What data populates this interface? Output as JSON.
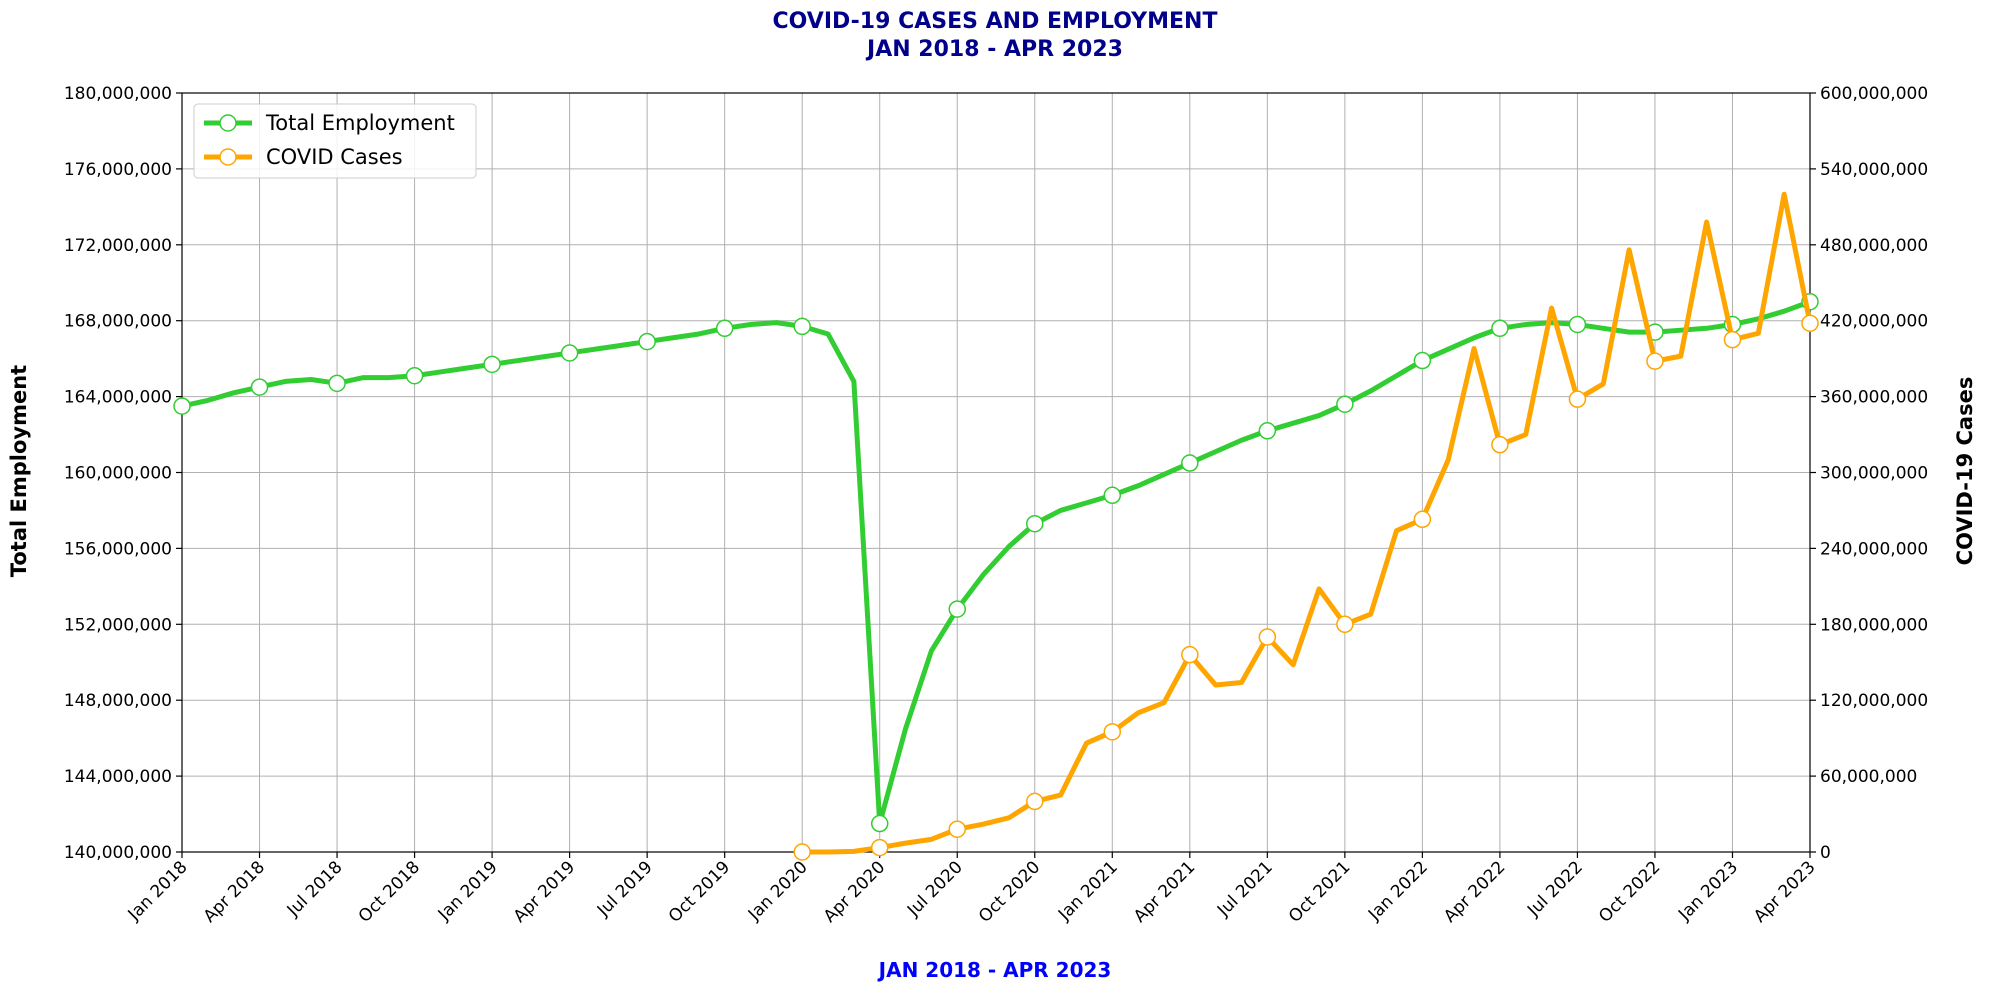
{
  "chart_data": {
    "type": "line",
    "title": [
      "COVID-19 CASES AND EMPLOYMENT",
      "JAN 2018 - APR 2023"
    ],
    "xlabel": "JAN 2018 - APR 2023",
    "ylabel_left": "Total Employment",
    "ylabel_right": "COVID-19 Cases",
    "ylim_left": [
      140000000,
      180000000
    ],
    "ylim_right": [
      0,
      600000000
    ],
    "yticks_left": [
      140000000,
      144000000,
      148000000,
      152000000,
      156000000,
      160000000,
      164000000,
      168000000,
      172000000,
      176000000,
      180000000
    ],
    "yticks_right": [
      0,
      60000000,
      120000000,
      180000000,
      240000000,
      300000000,
      360000000,
      420000000,
      480000000,
      540000000,
      600000000
    ],
    "ytick_labels_left": [
      "140,000,000",
      "144,000,000",
      "148,000,000",
      "152,000,000",
      "156,000,000",
      "160,000,000",
      "164,000,000",
      "168,000,000",
      "172,000,000",
      "176,000,000",
      "180,000,000"
    ],
    "ytick_labels_right": [
      "0",
      "60,000,000",
      "120,000,000",
      "180,000,000",
      "240,000,000",
      "300,000,000",
      "360,000,000",
      "420,000,000",
      "480,000,000",
      "540,000,000",
      "600,000,000"
    ],
    "xticks": [
      "Jan 2018",
      "Apr 2018",
      "Jul 2018",
      "Oct 2018",
      "Jan 2019",
      "Apr 2019",
      "Jul 2019",
      "Oct 2019",
      "Jan 2020",
      "Apr 2020",
      "Jul 2020",
      "Oct 2020",
      "Jan 2021",
      "Apr 2021",
      "Jul 2021",
      "Oct 2021",
      "Jan 2022",
      "Apr 2022",
      "Jul 2022",
      "Oct 2022",
      "Jan 2023",
      "Apr 2023"
    ],
    "grid": true,
    "legend_position": "top-left",
    "series": [
      {
        "name": "Total Employment",
        "color": "#32CD32",
        "axis": "left",
        "x": [
          "Jan 2018",
          "Feb 2018",
          "Mar 2018",
          "Apr 2018",
          "May 2018",
          "Jun 2018",
          "Jul 2018",
          "Aug 2018",
          "Sep 2018",
          "Oct 2018",
          "Nov 2018",
          "Dec 2018",
          "Jan 2019",
          "Feb 2019",
          "Mar 2019",
          "Apr 2019",
          "May 2019",
          "Jun 2019",
          "Jul 2019",
          "Aug 2019",
          "Sep 2019",
          "Oct 2019",
          "Nov 2019",
          "Dec 2019",
          "Jan 2020",
          "Feb 2020",
          "Mar 2020",
          "Apr 2020",
          "May 2020",
          "Jun 2020",
          "Jul 2020",
          "Aug 2020",
          "Sep 2020",
          "Oct 2020",
          "Nov 2020",
          "Dec 2020",
          "Jan 2021",
          "Feb 2021",
          "Mar 2021",
          "Apr 2021",
          "May 2021",
          "Jun 2021",
          "Jul 2021",
          "Aug 2021",
          "Sep 2021",
          "Oct 2021",
          "Nov 2021",
          "Dec 2021",
          "Jan 2022",
          "Feb 2022",
          "Mar 2022",
          "Apr 2022",
          "May 2022",
          "Jun 2022",
          "Jul 2022",
          "Aug 2022",
          "Sep 2022",
          "Oct 2022",
          "Nov 2022",
          "Dec 2022",
          "Jan 2023",
          "Feb 2023",
          "Mar 2023",
          "Apr 2023"
        ],
        "values": [
          163500000,
          163800000,
          164200000,
          164500000,
          164800000,
          164900000,
          164700000,
          165000000,
          165000000,
          165100000,
          165300000,
          165500000,
          165700000,
          165900000,
          166100000,
          166300000,
          166500000,
          166700000,
          166900000,
          167100000,
          167300000,
          167600000,
          167800000,
          167900000,
          167700000,
          167300000,
          164800000,
          141500000,
          146500000,
          150600000,
          152800000,
          154600000,
          156100000,
          157300000,
          158000000,
          158400000,
          158800000,
          159300000,
          159900000,
          160500000,
          161100000,
          161700000,
          162200000,
          162600000,
          163000000,
          163600000,
          164300000,
          165100000,
          165900000,
          166500000,
          167100000,
          167600000,
          167800000,
          167900000,
          167800000,
          167600000,
          167400000,
          167400000,
          167500000,
          167600000,
          167800000,
          168100000,
          168500000,
          169000000
        ],
        "marker_x": [
          "Jan 2018",
          "Apr 2018",
          "Jul 2018",
          "Oct 2018",
          "Jan 2019",
          "Apr 2019",
          "Jul 2019",
          "Oct 2019",
          "Jan 2020",
          "Apr 2020",
          "Jul 2020",
          "Oct 2020",
          "Jan 2021",
          "Apr 2021",
          "Jul 2021",
          "Oct 2021",
          "Jan 2022",
          "Apr 2022",
          "Jul 2022",
          "Oct 2022",
          "Jan 2023",
          "Apr 2023"
        ]
      },
      {
        "name": "COVID Cases",
        "color": "#FFA500",
        "axis": "right",
        "x": [
          "Jan 2020",
          "Feb 2020",
          "Mar 2020",
          "Apr 2020",
          "May 2020",
          "Jun 2020",
          "Jul 2020",
          "Aug 2020",
          "Sep 2020",
          "Oct 2020",
          "Nov 2020",
          "Dec 2020",
          "Jan 2021",
          "Feb 2021",
          "Mar 2021",
          "Apr 2021",
          "May 2021",
          "Jun 2021",
          "Jul 2021",
          "Aug 2021",
          "Sep 2021",
          "Oct 2021",
          "Nov 2021",
          "Dec 2021",
          "Jan 2022",
          "Feb 2022",
          "Mar 2022",
          "Apr 2022",
          "May 2022",
          "Jun 2022",
          "Jul 2022",
          "Aug 2022",
          "Sep 2022",
          "Oct 2022",
          "Nov 2022",
          "Dec 2022",
          "Jan 2023",
          "Feb 2023",
          "Mar 2023",
          "Apr 2023"
        ],
        "values": [
          0,
          0,
          500000,
          3500000,
          7000000,
          10000000,
          18000000,
          22000000,
          27000000,
          40000000,
          45000000,
          86000000,
          95000000,
          110000000,
          118000000,
          156000000,
          132000000,
          134000000,
          170000000,
          148000000,
          208000000,
          180000000,
          188000000,
          254000000,
          263000000,
          310000000,
          398000000,
          322000000,
          330000000,
          430000000,
          358000000,
          370000000,
          476000000,
          388000000,
          392000000,
          498000000,
          405000000,
          410000000,
          520000000,
          418000000
        ],
        "marker_x": [
          "Jan 2020",
          "Apr 2020",
          "Jul 2020",
          "Oct 2020",
          "Jan 2021",
          "Apr 2021",
          "Jul 2021",
          "Oct 2021",
          "Jan 2022",
          "Apr 2022",
          "Jul 2022",
          "Oct 2022",
          "Jan 2023",
          "Apr 2023"
        ]
      }
    ]
  }
}
